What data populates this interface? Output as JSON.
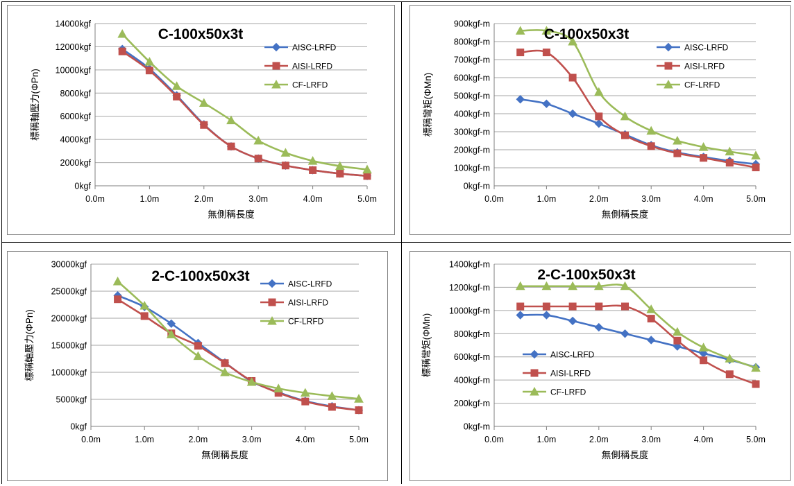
{
  "layout_note_free": true,
  "colors": {
    "AISC-LRFD": "#4472c4",
    "AISI-LRFD": "#c0504d",
    "CF-LRFD": "#9bbb59"
  },
  "chart_data": [
    {
      "type": "line",
      "title": "C-100x50x3t",
      "xlabel": "無側稱長度",
      "ylabel": "標稱軸壓力(ΦPn)",
      "x": [
        0.5,
        1.0,
        1.5,
        2.0,
        2.5,
        3.0,
        3.5,
        4.0,
        4.5,
        5.0
      ],
      "xlim": [
        0,
        5
      ],
      "ylim": [
        0,
        14000
      ],
      "xticks": [
        "0.0m",
        "1.0m",
        "2.0m",
        "3.0m",
        "4.0m",
        "5.0m"
      ],
      "yticks": [
        "0kgf",
        "2000kgf",
        "4000kgf",
        "6000kgf",
        "8000kgf",
        "10000kgf",
        "12000kgf",
        "14000kgf"
      ],
      "legend_position": "right",
      "series": [
        {
          "name": "AISC-LRFD",
          "values": [
            11800,
            10100,
            7800,
            5300,
            3400,
            2350,
            1750,
            1350,
            1050,
            850
          ]
        },
        {
          "name": "AISI-LRFD",
          "values": [
            11600,
            9950,
            7700,
            5250,
            3400,
            2350,
            1750,
            1350,
            1050,
            850
          ]
        },
        {
          "name": "CF-LRFD",
          "values": [
            13100,
            10700,
            8600,
            7150,
            5650,
            3900,
            2850,
            2150,
            1700,
            1400
          ]
        }
      ]
    },
    {
      "type": "line",
      "title": "C-100x50x3t",
      "xlabel": "無側稱長度",
      "ylabel": "標稱彎矩(ΦMn)",
      "x": [
        0.5,
        1.0,
        1.5,
        2.0,
        2.5,
        3.0,
        3.5,
        4.0,
        4.5,
        5.0
      ],
      "xlim": [
        0,
        5
      ],
      "ylim": [
        0,
        900
      ],
      "xticks": [
        "0.0m",
        "1.0m",
        "2.0m",
        "3.0m",
        "4.0m",
        "5.0m"
      ],
      "yticks": [
        "0kgf-m",
        "100kgf-m",
        "200kgf-m",
        "300kgf-m",
        "400kgf-m",
        "500kgf-m",
        "600kgf-m",
        "700kgf-m",
        "800kgf-m",
        "900kgf-m"
      ],
      "legend_position": "right",
      "series": [
        {
          "name": "AISC-LRFD",
          "values": [
            480,
            455,
            400,
            345,
            285,
            225,
            185,
            160,
            138,
            120
          ]
        },
        {
          "name": "AISI-LRFD",
          "values": [
            740,
            740,
            600,
            385,
            280,
            220,
            180,
            155,
            128,
            102
          ]
        },
        {
          "name": "CF-LRFD",
          "values": [
            860,
            860,
            800,
            520,
            385,
            305,
            250,
            215,
            190,
            168
          ]
        }
      ]
    },
    {
      "type": "line",
      "title": "2-C-100x50x3t",
      "xlabel": "無側稱長度",
      "ylabel": "標稱軸壓力(ΦPn)",
      "x": [
        0.5,
        1.0,
        1.5,
        2.0,
        2.5,
        3.0,
        3.5,
        4.0,
        4.5,
        5.0
      ],
      "xlim": [
        0,
        5
      ],
      "ylim": [
        0,
        30000
      ],
      "xticks": [
        "0.0m",
        "1.0m",
        "2.0m",
        "3.0m",
        "4.0m",
        "5.0m"
      ],
      "yticks": [
        "0kgf",
        "5000kgf",
        "10000kgf",
        "15000kgf",
        "20000kgf",
        "25000kgf",
        "30000kgf"
      ],
      "legend_position": "right",
      "series": [
        {
          "name": "AISC-LRFD",
          "values": [
            24200,
            22100,
            19000,
            15400,
            11800,
            8300,
            6300,
            4700,
            3700,
            3000
          ]
        },
        {
          "name": "AISI-LRFD",
          "values": [
            23500,
            20400,
            17200,
            14900,
            11700,
            8400,
            6200,
            4600,
            3600,
            3000
          ]
        },
        {
          "name": "CF-LRFD",
          "values": [
            26800,
            22300,
            17000,
            13000,
            10000,
            8200,
            7000,
            6200,
            5600,
            5100
          ]
        }
      ]
    },
    {
      "type": "line",
      "title": "2-C-100x50x3t",
      "xlabel": "無側稱長度",
      "ylabel": "標稱彎矩(ΦMn)",
      "x": [
        0.5,
        1.0,
        1.5,
        2.0,
        2.5,
        3.0,
        3.5,
        4.0,
        4.5,
        5.0
      ],
      "xlim": [
        0,
        5
      ],
      "ylim": [
        0,
        1400
      ],
      "xticks": [
        "0.0m",
        "1.0m",
        "2.0m",
        "3.0m",
        "4.0m",
        "5.0m"
      ],
      "yticks": [
        "0kgf-m",
        "200kgf-m",
        "400kgf-m",
        "600kgf-m",
        "800kgf-m",
        "1000kgf-m",
        "1200kgf-m",
        "1400kgf-m"
      ],
      "legend_position": "left",
      "series": [
        {
          "name": "AISC-LRFD",
          "values": [
            960,
            960,
            910,
            855,
            800,
            745,
            690,
            630,
            575,
            510
          ]
        },
        {
          "name": "AISI-LRFD",
          "values": [
            1035,
            1035,
            1035,
            1035,
            1035,
            930,
            740,
            570,
            450,
            365
          ]
        },
        {
          "name": "CF-LRFD",
          "values": [
            1210,
            1210,
            1210,
            1210,
            1210,
            1010,
            815,
            680,
            585,
            505
          ]
        }
      ]
    }
  ]
}
